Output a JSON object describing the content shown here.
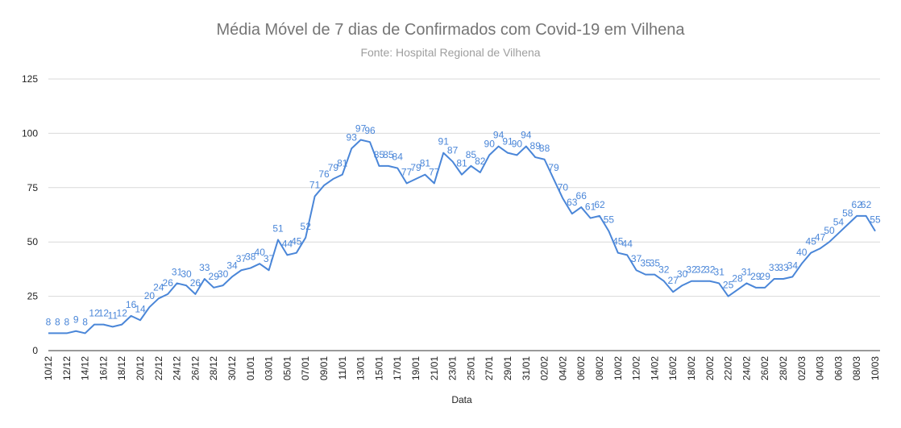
{
  "chart_data": {
    "type": "line",
    "title": "Média Móvel de 7 dias de Confirmados com Covid-19 em Vilhena",
    "subtitle": "Fonte: Hospital Regional de Vilhena",
    "xlabel": "Data",
    "ylabel": "",
    "ylim": [
      0,
      125
    ],
    "yticks": [
      "0",
      "25",
      "50",
      "75",
      "100",
      "125"
    ],
    "grid": true,
    "legend": "none",
    "colors": {
      "line": "#4a86d8",
      "grid": "#d9d9d9",
      "label": "#4a86d8"
    },
    "x_tick_labels": [
      "10/12",
      "12/12",
      "14/12",
      "16/12",
      "18/12",
      "20/12",
      "22/12",
      "24/12",
      "26/12",
      "28/12",
      "30/12",
      "01/01",
      "03/01",
      "05/01",
      "07/01",
      "09/01",
      "11/01",
      "13/01",
      "15/01",
      "17/01",
      "19/01",
      "21/01",
      "23/01",
      "25/01",
      "27/01",
      "29/01",
      "31/01",
      "02/02",
      "04/02",
      "06/02",
      "08/02",
      "10/02",
      "12/02",
      "14/02",
      "16/02",
      "18/02",
      "20/02",
      "22/02",
      "24/02",
      "26/02",
      "28/02",
      "02/03",
      "04/03",
      "06/03",
      "08/03",
      "10/03"
    ],
    "values": [
      8,
      8,
      8,
      9,
      8,
      12,
      12,
      11,
      12,
      16,
      14,
      20,
      24,
      26,
      31,
      30,
      26,
      33,
      29,
      30,
      34,
      37,
      38,
      40,
      37,
      51,
      44,
      45,
      52,
      71,
      76,
      79,
      81,
      93,
      97,
      96,
      85,
      85,
      84,
      77,
      79,
      81,
      77,
      91,
      87,
      81,
      85,
      82,
      90,
      94,
      91,
      90,
      94,
      89,
      88,
      79,
      70,
      63,
      66,
      61,
      62,
      55,
      45,
      44,
      37,
      35,
      35,
      32,
      27,
      30,
      32,
      32,
      32,
      31,
      25,
      28,
      31,
      29,
      29,
      33,
      33,
      34,
      40,
      45,
      47,
      50,
      54,
      58,
      62,
      62,
      55
    ]
  }
}
